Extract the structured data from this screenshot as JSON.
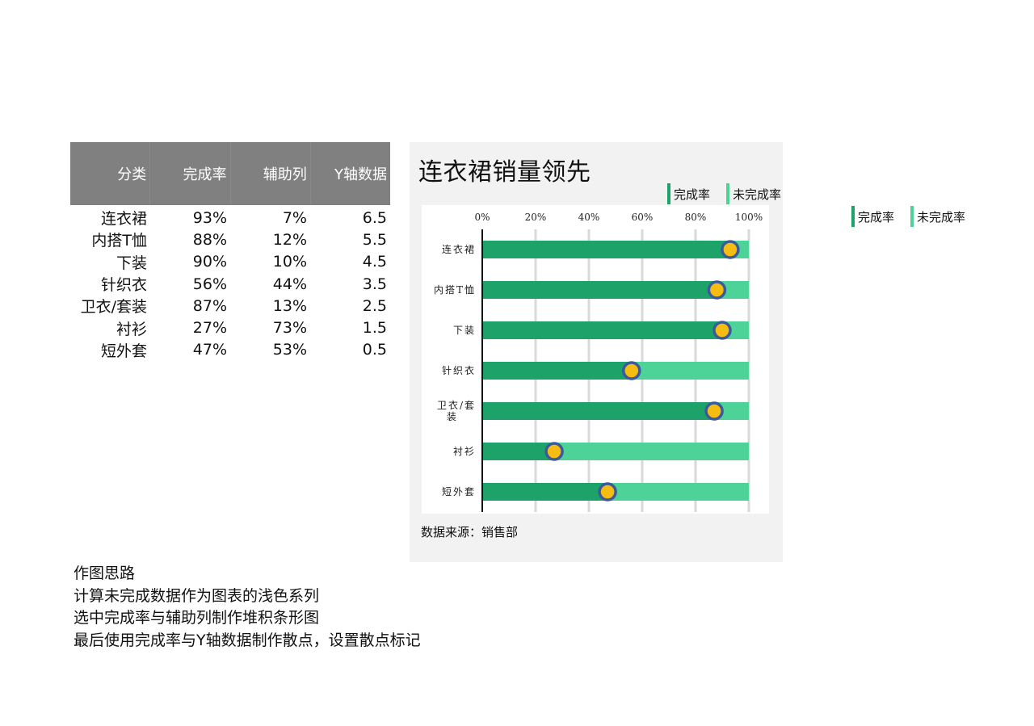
{
  "table": {
    "headers": [
      "分类",
      "完成率",
      "辅助列",
      "Y轴数据"
    ],
    "rows": [
      [
        "连衣裙",
        "93%",
        "7%",
        "6.5"
      ],
      [
        "内搭T恤",
        "88%",
        "12%",
        "5.5"
      ],
      [
        "下装",
        "90%",
        "10%",
        "4.5"
      ],
      [
        "针织衣",
        "56%",
        "44%",
        "3.5"
      ],
      [
        "卫衣/套装",
        "87%",
        "13%",
        "2.5"
      ],
      [
        "衬衫",
        "27%",
        "73%",
        "1.5"
      ],
      [
        "短外套",
        "47%",
        "53%",
        "0.5"
      ]
    ]
  },
  "chart_card": {
    "title": "连衣裙销量领先",
    "source": "数据来源：销售部",
    "legend": [
      {
        "label": "完成率",
        "color": "#1da36a"
      },
      {
        "label": "未完成率",
        "color": "#4dd398"
      }
    ]
  },
  "outer_legend": [
    {
      "label": "完成率",
      "color": "#1da36a"
    },
    {
      "label": "未完成率",
      "color": "#4dd398"
    }
  ],
  "notes": {
    "title": "作图思路",
    "lines": [
      "计算未完成数据作为图表的浅色系列",
      "选中完成率与辅助列制作堆积条形图",
      "最后使用完成率与Y轴数据制作散点，设置散点标记"
    ]
  },
  "chart_data": {
    "type": "bar",
    "orientation": "horizontal",
    "stacked": true,
    "title": "连衣裙销量领先",
    "categories": [
      "连衣裙",
      "内搭T恤",
      "下装",
      "针织衣",
      "卫衣/套装",
      "衬衫",
      "短外套"
    ],
    "category_tick_labels": [
      "连衣裙",
      "内搭T恤",
      "下装",
      "针织衣",
      "卫衣/套\n装",
      "衬衫",
      "短外套"
    ],
    "series": [
      {
        "name": "完成率",
        "values": [
          0.93,
          0.88,
          0.9,
          0.56,
          0.87,
          0.27,
          0.47
        ],
        "color": "#1da36a"
      },
      {
        "name": "未完成率",
        "values": [
          0.07,
          0.12,
          0.1,
          0.44,
          0.13,
          0.73,
          0.53
        ],
        "color": "#4dd398"
      }
    ],
    "scatter": {
      "x": [
        0.93,
        0.88,
        0.9,
        0.56,
        0.87,
        0.27,
        0.47
      ],
      "y": [
        6.5,
        5.5,
        4.5,
        3.5,
        2.5,
        1.5,
        0.5
      ],
      "marker_fill": "#f5bd12",
      "marker_edge": "#3a5a9c"
    },
    "x_ticks": [
      "0%",
      "20%",
      "40%",
      "60%",
      "80%",
      "100%"
    ],
    "xlim": [
      0,
      1
    ],
    "ylim": [
      0,
      7
    ],
    "grid": true
  }
}
